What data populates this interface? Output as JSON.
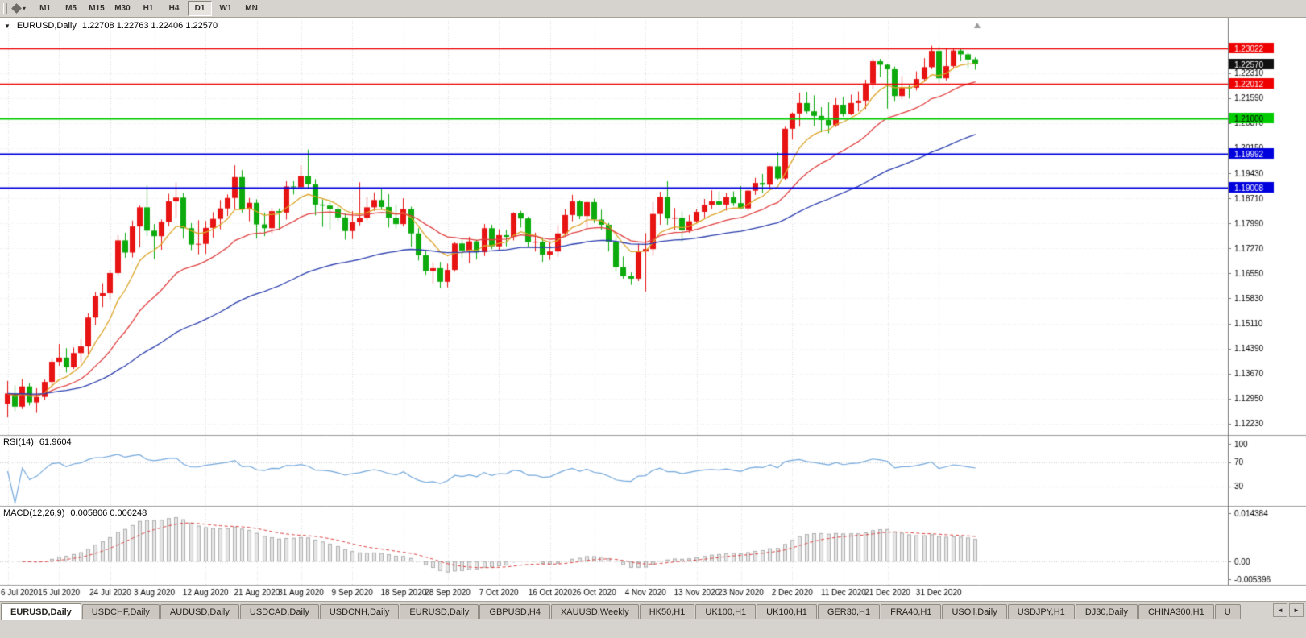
{
  "icons": {
    "collapse": "▼",
    "menu_caret": "▾",
    "scroll_left": "◄",
    "scroll_right": "►"
  },
  "toolbar": {
    "timeframes": [
      {
        "label": "M1",
        "active": false
      },
      {
        "label": "M5",
        "active": false
      },
      {
        "label": "M15",
        "active": false
      },
      {
        "label": "M30",
        "active": false
      },
      {
        "label": "H1",
        "active": false
      },
      {
        "label": "H4",
        "active": false
      },
      {
        "label": "D1",
        "active": true
      },
      {
        "label": "W1",
        "active": false
      },
      {
        "label": "MN",
        "active": false
      }
    ]
  },
  "chart_header": {
    "symbol": "EURUSD,Daily",
    "ohlc": "1.22708 1.22763 1.22406 1.22570"
  },
  "indicators": {
    "rsi": {
      "name": "RSI(14)",
      "value": "61.9604"
    },
    "macd": {
      "name": "MACD(12,26,9)",
      "values": "0.005806 0.006248"
    }
  },
  "colors": {
    "bull": "#e81414",
    "bear": "#0caa0c",
    "grid": "#dcdcdc",
    "separator": "#9a9a9a",
    "scale_text": "#000000"
  },
  "tabs": {
    "items": [
      {
        "label": "EURUSD,Daily",
        "active": true
      },
      {
        "label": "USDCHF,Daily",
        "active": false
      },
      {
        "label": "AUDUSD,Daily",
        "active": false
      },
      {
        "label": "USDCAD,Daily",
        "active": false
      },
      {
        "label": "USDCNH,Daily",
        "active": false
      },
      {
        "label": "EURUSD,Daily",
        "active": false
      },
      {
        "label": "GBPUSD,H4",
        "active": false
      },
      {
        "label": "XAUUSD,Weekly",
        "active": false
      },
      {
        "label": "HK50,H1",
        "active": false
      },
      {
        "label": "UK100,H1",
        "active": false
      },
      {
        "label": "UK100,H1",
        "active": false
      },
      {
        "label": "GER30,H1",
        "active": false
      },
      {
        "label": "FRA40,H1",
        "active": false
      },
      {
        "label": "USOil,Daily",
        "active": false
      },
      {
        "label": "USDJPY,H1",
        "active": false
      },
      {
        "label": "DJ30,Daily",
        "active": false
      },
      {
        "label": "CHINA300,H1",
        "active": false
      },
      {
        "label": "U",
        "active": false
      }
    ]
  },
  "chart_data": {
    "type": "candlestick",
    "symbol": "EURUSD",
    "timeframe": "Daily",
    "last": {
      "open": 1.22708,
      "high": 1.22763,
      "low": 1.22406,
      "close": 1.2257
    },
    "price_axis": {
      "min": 1.1195,
      "max": 1.233,
      "ticks": [
        1.2231,
        1.2159,
        1.2087,
        1.2015,
        1.1943,
        1.1871,
        1.1799,
        1.1727,
        1.1655,
        1.1583,
        1.1511,
        1.1439,
        1.1367,
        1.1295,
        1.1223
      ]
    },
    "horizontal_lines": [
      {
        "price": 1.23022,
        "color": "#ee0000",
        "width": 1.6,
        "text_color": "#ffffff"
      },
      {
        "price": 1.22012,
        "color": "#ee0000",
        "width": 1.6,
        "text_color": "#ffffff"
      },
      {
        "price": 1.21,
        "color": "#00cc00",
        "width": 2.2,
        "text_color": "#000000"
      },
      {
        "price": 1.19992,
        "color": "#0000dd",
        "width": 2.2,
        "text_color": "#ffffff"
      },
      {
        "price": 1.19008,
        "color": "#0000dd",
        "width": 2.2,
        "text_color": "#ffffff"
      }
    ],
    "current_price": {
      "price": 1.2257,
      "badge_color": "#111111"
    },
    "moving_averages": [
      {
        "period": 8,
        "type": "ema",
        "color": "#dda428"
      },
      {
        "period": 20,
        "type": "ema",
        "color": "#e04040"
      },
      {
        "period": 55,
        "type": "ema",
        "color": "#2c3fae"
      }
    ],
    "rsi": {
      "period": 14,
      "color": "#74a8dc",
      "scale_max": 110,
      "levels": [
        100,
        70,
        30
      ]
    },
    "macd": {
      "fast": 12,
      "slow": 26,
      "signal": 9,
      "hist_color": "#e6e6e6",
      "hist_border": "#b0b0b0",
      "signal_color": "#dd4444",
      "scale": {
        "max": 0.0152,
        "min": -0.006
      },
      "labels": [
        {
          "v": 0.014384,
          "t": "0.014384"
        },
        {
          "v": 0.0,
          "t": "0.00"
        },
        {
          "v": -0.005396,
          "t": "-0.005396"
        }
      ]
    },
    "date_labels": [
      {
        "i": 0,
        "t": "6 Jul 2020"
      },
      {
        "i": 7,
        "t": "15 Jul 2020"
      },
      {
        "i": 14,
        "t": "24 Jul 2020"
      },
      {
        "i": 20,
        "t": "3 Aug 2020"
      },
      {
        "i": 27,
        "t": "12 Aug 2020"
      },
      {
        "i": 34,
        "t": "21 Aug 2020"
      },
      {
        "i": 40,
        "t": "31 Aug 2020"
      },
      {
        "i": 47,
        "t": "9 Sep 2020"
      },
      {
        "i": 54,
        "t": "18 Sep 2020"
      },
      {
        "i": 60,
        "t": "28 Sep 2020"
      },
      {
        "i": 67,
        "t": "7 Oct 2020"
      },
      {
        "i": 74,
        "t": "16 Oct 2020"
      },
      {
        "i": 80,
        "t": "26 Oct 2020"
      },
      {
        "i": 87,
        "t": "4 Nov 2020"
      },
      {
        "i": 94,
        "t": "13 Nov 2020"
      },
      {
        "i": 100,
        "t": "23 Nov 2020"
      },
      {
        "i": 107,
        "t": "2 Dec 2020"
      },
      {
        "i": 114,
        "t": "11 Dec 2020"
      },
      {
        "i": 120,
        "t": "21 Dec 2020"
      },
      {
        "i": 127,
        "t": "31 Dec 2020"
      }
    ],
    "candles": [
      [
        1.128,
        1.1346,
        1.1241,
        1.131
      ],
      [
        1.131,
        1.1333,
        1.1259,
        1.1272
      ],
      [
        1.1272,
        1.1351,
        1.1265,
        1.133
      ],
      [
        1.133,
        1.1339,
        1.1275,
        1.1284
      ],
      [
        1.1284,
        1.1325,
        1.1254,
        1.13
      ],
      [
        1.13,
        1.135,
        1.129,
        1.1343
      ],
      [
        1.1343,
        1.1409,
        1.1325,
        1.1401
      ],
      [
        1.1401,
        1.1452,
        1.139,
        1.1413
      ],
      [
        1.1413,
        1.144,
        1.137,
        1.1385
      ],
      [
        1.1385,
        1.1442,
        1.138,
        1.1426
      ],
      [
        1.1426,
        1.1467,
        1.14,
        1.1445
      ],
      [
        1.1445,
        1.154,
        1.1422,
        1.1528
      ],
      [
        1.1528,
        1.1601,
        1.1507,
        1.159
      ],
      [
        1.159,
        1.1627,
        1.1558,
        1.1598
      ],
      [
        1.1598,
        1.1665,
        1.1581,
        1.1656
      ],
      [
        1.1656,
        1.1765,
        1.165,
        1.175
      ],
      [
        1.175,
        1.1772,
        1.17,
        1.1715
      ],
      [
        1.1715,
        1.1807,
        1.1701,
        1.179
      ],
      [
        1.179,
        1.185,
        1.173,
        1.1845
      ],
      [
        1.1845,
        1.1908,
        1.1762,
        1.1778
      ],
      [
        1.1778,
        1.1797,
        1.1696,
        1.1762
      ],
      [
        1.1762,
        1.181,
        1.1723,
        1.1803
      ],
      [
        1.1803,
        1.1884,
        1.179,
        1.1862
      ],
      [
        1.1862,
        1.1916,
        1.1815,
        1.1873
      ],
      [
        1.1873,
        1.1886,
        1.1755,
        1.1785
      ],
      [
        1.1785,
        1.18,
        1.1722,
        1.1738
      ],
      [
        1.1738,
        1.1808,
        1.171,
        1.174
      ],
      [
        1.174,
        1.1806,
        1.1711,
        1.1786
      ],
      [
        1.1786,
        1.1831,
        1.1758,
        1.1812
      ],
      [
        1.1812,
        1.1866,
        1.1782,
        1.1842
      ],
      [
        1.1842,
        1.1882,
        1.182,
        1.1872
      ],
      [
        1.1872,
        1.1966,
        1.184,
        1.1932
      ],
      [
        1.1932,
        1.1952,
        1.183,
        1.1839
      ],
      [
        1.1839,
        1.1872,
        1.1805,
        1.1858
      ],
      [
        1.1858,
        1.1868,
        1.1755,
        1.1796
      ],
      [
        1.1796,
        1.183,
        1.1762,
        1.1785
      ],
      [
        1.1785,
        1.1843,
        1.177,
        1.1834
      ],
      [
        1.1834,
        1.1842,
        1.178,
        1.183
      ],
      [
        1.183,
        1.192,
        1.181,
        1.1905
      ],
      [
        1.1905,
        1.192,
        1.1882,
        1.1903
      ],
      [
        1.1903,
        1.1966,
        1.1898,
        1.1935
      ],
      [
        1.1935,
        1.2011,
        1.1898,
        1.1911
      ],
      [
        1.1911,
        1.1926,
        1.1822,
        1.1853
      ],
      [
        1.1853,
        1.1868,
        1.1789,
        1.185
      ],
      [
        1.185,
        1.1865,
        1.1781,
        1.184
      ],
      [
        1.184,
        1.1851,
        1.1805,
        1.1816
      ],
      [
        1.1816,
        1.1827,
        1.1752,
        1.1777
      ],
      [
        1.1777,
        1.1834,
        1.1754,
        1.1802
      ],
      [
        1.1802,
        1.1917,
        1.1793,
        1.1815
      ],
      [
        1.1815,
        1.1874,
        1.1808,
        1.1845
      ],
      [
        1.1845,
        1.1888,
        1.1835,
        1.1866
      ],
      [
        1.1866,
        1.1901,
        1.1838,
        1.1846
      ],
      [
        1.1846,
        1.1883,
        1.1787,
        1.1815
      ],
      [
        1.1815,
        1.1852,
        1.1784,
        1.1797
      ],
      [
        1.1797,
        1.1871,
        1.179,
        1.184
      ],
      [
        1.184,
        1.1847,
        1.1732,
        1.177
      ],
      [
        1.177,
        1.1785,
        1.1692,
        1.1707
      ],
      [
        1.1707,
        1.172,
        1.1651,
        1.1662
      ],
      [
        1.1662,
        1.1687,
        1.1626,
        1.167
      ],
      [
        1.167,
        1.1688,
        1.1612,
        1.1631
      ],
      [
        1.1631,
        1.1683,
        1.1615,
        1.1665
      ],
      [
        1.1665,
        1.1745,
        1.166,
        1.1741
      ],
      [
        1.1741,
        1.1755,
        1.17,
        1.1721
      ],
      [
        1.1721,
        1.176,
        1.1684,
        1.1747
      ],
      [
        1.1747,
        1.1752,
        1.1695,
        1.1716
      ],
      [
        1.1716,
        1.1797,
        1.1705,
        1.1785
      ],
      [
        1.1785,
        1.1795,
        1.1725,
        1.1733
      ],
      [
        1.1733,
        1.1782,
        1.1723,
        1.1765
      ],
      [
        1.1765,
        1.1781,
        1.1733,
        1.176
      ],
      [
        1.176,
        1.1831,
        1.175,
        1.1828
      ],
      [
        1.1828,
        1.1835,
        1.1787,
        1.1813
      ],
      [
        1.1813,
        1.1818,
        1.173,
        1.1745
      ],
      [
        1.1745,
        1.1772,
        1.1718,
        1.1746
      ],
      [
        1.1746,
        1.1758,
        1.1688,
        1.1709
      ],
      [
        1.1709,
        1.1747,
        1.1694,
        1.1718
      ],
      [
        1.1718,
        1.1794,
        1.1703,
        1.177
      ],
      [
        1.177,
        1.184,
        1.176,
        1.1823
      ],
      [
        1.1823,
        1.1881,
        1.1805,
        1.1862
      ],
      [
        1.1862,
        1.1866,
        1.1811,
        1.182
      ],
      [
        1.182,
        1.1863,
        1.1786,
        1.186
      ],
      [
        1.186,
        1.187,
        1.18,
        1.181
      ],
      [
        1.181,
        1.1838,
        1.178,
        1.1795
      ],
      [
        1.1795,
        1.18,
        1.1718,
        1.1746
      ],
      [
        1.1746,
        1.1759,
        1.166,
        1.1673
      ],
      [
        1.1673,
        1.1704,
        1.164,
        1.1647
      ],
      [
        1.1647,
        1.1658,
        1.1622,
        1.164
      ],
      [
        1.164,
        1.174,
        1.1633,
        1.1718
      ],
      [
        1.1718,
        1.1771,
        1.1603,
        1.1725
      ],
      [
        1.1725,
        1.186,
        1.1706,
        1.1826
      ],
      [
        1.1826,
        1.189,
        1.1795,
        1.1875
      ],
      [
        1.1875,
        1.192,
        1.1795,
        1.1813
      ],
      [
        1.1813,
        1.1843,
        1.178,
        1.1815
      ],
      [
        1.1815,
        1.1833,
        1.1745,
        1.1779
      ],
      [
        1.1779,
        1.1823,
        1.1772,
        1.1805
      ],
      [
        1.1805,
        1.1839,
        1.1799,
        1.1832
      ],
      [
        1.1832,
        1.1869,
        1.1815,
        1.1852
      ],
      [
        1.1852,
        1.1894,
        1.184,
        1.1862
      ],
      [
        1.1862,
        1.1891,
        1.1849,
        1.1853
      ],
      [
        1.1853,
        1.1886,
        1.1836,
        1.1874
      ],
      [
        1.1874,
        1.1891,
        1.1849,
        1.1857
      ],
      [
        1.1857,
        1.1906,
        1.1839,
        1.1842
      ],
      [
        1.1842,
        1.1895,
        1.1835,
        1.1893
      ],
      [
        1.1893,
        1.193,
        1.1881,
        1.1915
      ],
      [
        1.1915,
        1.1941,
        1.1886,
        1.191
      ],
      [
        1.191,
        1.1964,
        1.1901,
        1.1963
      ],
      [
        1.1963,
        1.2003,
        1.1924,
        1.1928
      ],
      [
        1.1928,
        1.2077,
        1.1923,
        1.2071
      ],
      [
        1.2071,
        1.2118,
        1.204,
        1.2115
      ],
      [
        1.2115,
        1.2175,
        1.2077,
        1.2145
      ],
      [
        1.2145,
        1.2177,
        1.2115,
        1.2121
      ],
      [
        1.2121,
        1.2167,
        1.2079,
        1.2108
      ],
      [
        1.2108,
        1.2133,
        1.2061,
        1.2096
      ],
      [
        1.2096,
        1.2147,
        1.2058,
        1.2081
      ],
      [
        1.2081,
        1.2159,
        1.2076,
        1.214
      ],
      [
        1.214,
        1.2163,
        1.2106,
        1.2113
      ],
      [
        1.2113,
        1.2169,
        1.211,
        1.2145
      ],
      [
        1.2145,
        1.2178,
        1.2121,
        1.2152
      ],
      [
        1.2152,
        1.2212,
        1.2128,
        1.2201
      ],
      [
        1.2201,
        1.2273,
        1.2186,
        1.2265
      ],
      [
        1.2265,
        1.2272,
        1.222,
        1.2255
      ],
      [
        1.2255,
        1.2258,
        1.2129,
        1.2242
      ],
      [
        1.2242,
        1.225,
        1.2151,
        1.2165
      ],
      [
        1.2165,
        1.2222,
        1.2155,
        1.219
      ],
      [
        1.219,
        1.2196,
        1.2158,
        1.2189
      ],
      [
        1.2189,
        1.2236,
        1.2181,
        1.2214
      ],
      [
        1.2214,
        1.2274,
        1.2208,
        1.2248
      ],
      [
        1.2248,
        1.231,
        1.2242,
        1.2295
      ],
      [
        1.2295,
        1.2308,
        1.2203,
        1.2216
      ],
      [
        1.2216,
        1.2302,
        1.221,
        1.2251
      ],
      [
        1.2251,
        1.2303,
        1.2247,
        1.2296
      ],
      [
        1.2296,
        1.2302,
        1.2265,
        1.2285
      ],
      [
        1.2285,
        1.229,
        1.2245,
        1.227
      ],
      [
        1.22708,
        1.22763,
        1.22406,
        1.2257
      ]
    ]
  }
}
